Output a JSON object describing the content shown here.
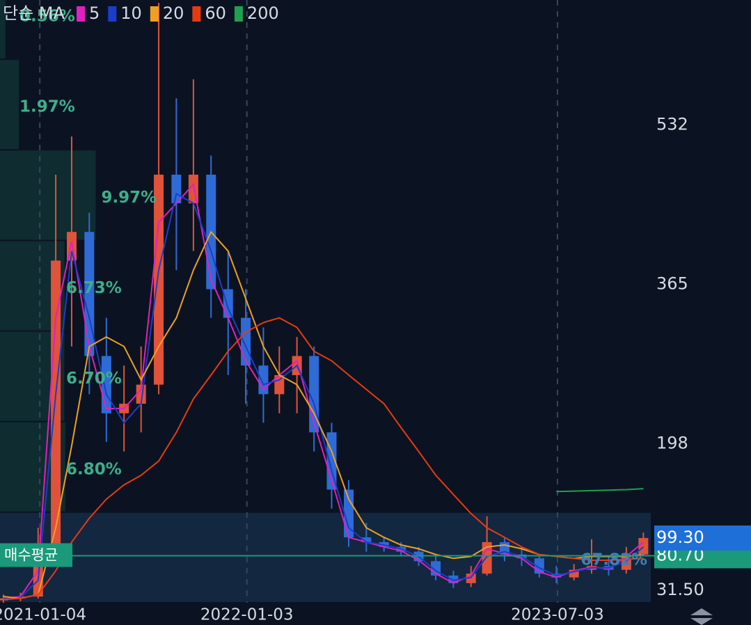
{
  "chart_data": {
    "type": "candlestick",
    "legend_title": "단순 MA",
    "x": [
      "2020-11-01",
      "2020-12-01",
      "2021-01-01",
      "2021-02-01",
      "2021-03-01",
      "2021-04-01",
      "2021-05-01",
      "2021-06-01",
      "2021-07-01",
      "2021-08-01",
      "2021-09-01",
      "2021-10-01",
      "2021-11-01",
      "2021-12-01",
      "2022-01-01",
      "2022-02-01",
      "2022-03-01",
      "2022-04-01",
      "2022-05-01",
      "2022-06-01",
      "2022-07-01",
      "2022-08-01",
      "2022-09-01",
      "2022-10-01",
      "2022-11-01",
      "2022-12-01",
      "2023-01-01",
      "2023-02-01",
      "2023-03-01",
      "2023-04-01",
      "2023-05-01",
      "2023-06-01",
      "2023-07-01",
      "2023-08-01",
      "2023-09-01",
      "2023-10-01",
      "2023-11-01",
      "2023-12-01"
    ],
    "open": [
      34,
      36,
      38,
      75,
      390,
      420,
      290,
      230,
      240,
      260,
      480,
      450,
      480,
      360,
      330,
      280,
      250,
      270,
      290,
      210,
      150,
      100,
      95,
      90,
      85,
      75,
      60,
      52,
      62,
      95,
      82,
      78,
      62,
      58,
      66,
      70,
      66,
      82
    ],
    "high": [
      40,
      42,
      110,
      480,
      520,
      440,
      330,
      280,
      300,
      660,
      560,
      580,
      500,
      400,
      360,
      320,
      300,
      310,
      300,
      220,
      160,
      115,
      100,
      95,
      90,
      80,
      65,
      70,
      122,
      100,
      90,
      82,
      70,
      72,
      98,
      80,
      90,
      105
    ],
    "low": [
      31.5,
      33,
      36,
      70,
      300,
      250,
      200,
      190,
      210,
      250,
      380,
      400,
      330,
      270,
      240,
      220,
      230,
      230,
      190,
      130,
      90,
      85,
      85,
      80,
      70,
      55,
      47,
      48,
      60,
      75,
      70,
      58,
      52,
      55,
      62,
      60,
      62,
      80
    ],
    "close": [
      36,
      38,
      75,
      390,
      420,
      290,
      230,
      240,
      260,
      480,
      450,
      480,
      360,
      330,
      280,
      250,
      270,
      290,
      210,
      150,
      100,
      95,
      90,
      85,
      75,
      60,
      52,
      62,
      95,
      82,
      78,
      62,
      58,
      66,
      70,
      66,
      82,
      99.3
    ],
    "up_color": "#e0523a",
    "down_color": "#2f6bd6",
    "series": [
      {
        "name": "5",
        "color": "#e020c0",
        "values": [
          36,
          38,
          65,
          330,
          410,
          300,
          235,
          235,
          255,
          430,
          450,
          470,
          370,
          330,
          285,
          255,
          270,
          285,
          220,
          160,
          100,
          95,
          90,
          86,
          76,
          62,
          52,
          60,
          88,
          83,
          78,
          64,
          58,
          65,
          69,
          67,
          80,
          95
        ]
      },
      {
        "name": "10",
        "color": "#1c3ccc",
        "values": [
          36,
          37,
          55,
          250,
          400,
          330,
          250,
          220,
          240,
          380,
          460,
          450,
          400,
          340,
          300,
          260,
          265,
          280,
          240,
          170,
          110,
          95,
          92,
          88,
          80,
          65,
          55,
          58,
          80,
          85,
          80,
          68,
          60,
          64,
          68,
          68,
          75,
          90
        ]
      },
      {
        "name": "20",
        "color": "#f0a020",
        "values": [
          38,
          36,
          40,
          110,
          196,
          300,
          310,
          300,
          265,
          300,
          330,
          380,
          420,
          400,
          350,
          300,
          270,
          260,
          230,
          190,
          140,
          110,
          100,
          92,
          88,
          82,
          78,
          80,
          90,
          92,
          88,
          82,
          80,
          78,
          80,
          80,
          80,
          82
        ]
      },
      {
        "name": "60",
        "color": "#e83a10",
        "values": [
          35,
          36,
          40,
          65,
          95,
          120,
          140,
          155,
          165,
          180,
          210,
          245,
          270,
          295,
          315,
          325,
          330,
          320,
          295,
          285,
          270,
          255,
          240,
          215,
          190,
          165,
          145,
          125,
          110,
          100,
          90,
          82,
          80,
          78,
          76,
          76,
          77,
          78
        ]
      },
      {
        "name": "200",
        "color": "#20a050",
        "values": [
          null,
          null,
          null,
          null,
          null,
          null,
          null,
          null,
          null,
          null,
          null,
          null,
          null,
          null,
          null,
          null,
          null,
          null,
          null,
          null,
          null,
          null,
          null,
          null,
          null,
          null,
          null,
          null,
          null,
          null,
          null,
          null,
          148,
          148.5,
          149,
          149.5,
          150,
          151
        ]
      }
    ],
    "xlim": [
      "2020-10-26",
      "2023-12-14"
    ],
    "xticks": [
      "2021-01-04",
      "2022-01-03",
      "2023-07-03"
    ],
    "ylim": [
      31.5,
      663
    ],
    "yticks": [
      198,
      365,
      532,
      {
        "value": 31.5,
        "label": "31.50"
      }
    ],
    "grid": "x",
    "volume_profile": {
      "bins": [
        31.5,
        126.4,
        221.3,
        316.2,
        411.1,
        506,
        600.9,
        695.8
      ],
      "values": [
        67.82,
        6.8,
        6.7,
        6.73,
        9.97,
        1.97,
        0.56
      ],
      "value_labels": [
        "67.82%",
        "6.80%",
        "6.70%",
        "6.73%",
        "9.97%",
        "1.97%",
        "0.56%"
      ]
    },
    "avg_price": {
      "name": "매수평균",
      "value": 80.7,
      "label": "80.70",
      "color": "#1a9a7a"
    },
    "last_price": {
      "value": 99.3,
      "label": "99.30",
      "color": "#1f6fd8"
    }
  }
}
